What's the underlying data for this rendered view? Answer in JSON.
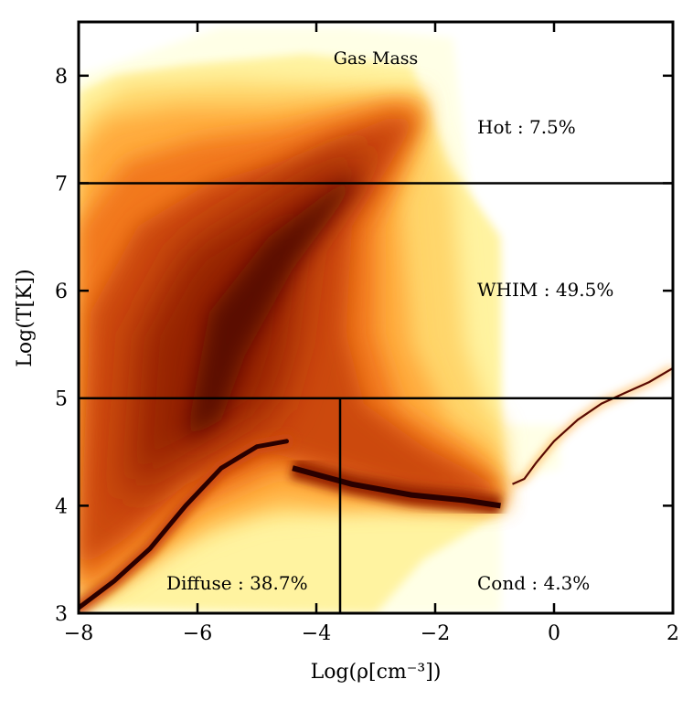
{
  "chart_data": {
    "type": "heatmap",
    "title": "Gas Mass",
    "xlabel": "Log(ρ[cm⁻³])",
    "ylabel": "Log(T[K])",
    "xlim": [
      -8,
      2
    ],
    "ylim": [
      3,
      8.5
    ],
    "xticks": [
      -8,
      -6,
      -4,
      -2,
      0,
      2
    ],
    "yticks": [
      3,
      4,
      5,
      6,
      7,
      8
    ],
    "colormap": [
      "#ffffe6",
      "#fff3a0",
      "#ffd56a",
      "#ffab3c",
      "#f2781c",
      "#cc4a0c",
      "#952406",
      "#5a0a02",
      "#2a0000"
    ],
    "phase_boundaries": {
      "t_hot": 7.0,
      "t_warm": 5.0,
      "rho_diffuse_cond": -3.6
    },
    "regions": [
      {
        "name": "Hot",
        "fraction": "7.5%",
        "label": "Hot : 7.5%"
      },
      {
        "name": "WHIM",
        "fraction": "49.5%",
        "label": "WHIM : 49.5%"
      },
      {
        "name": "Diffuse",
        "fraction": "38.7%",
        "label": "Diffuse : 38.7%"
      },
      {
        "name": "Cond",
        "fraction": "4.3%",
        "label": "Cond : 4.3%"
      }
    ]
  }
}
